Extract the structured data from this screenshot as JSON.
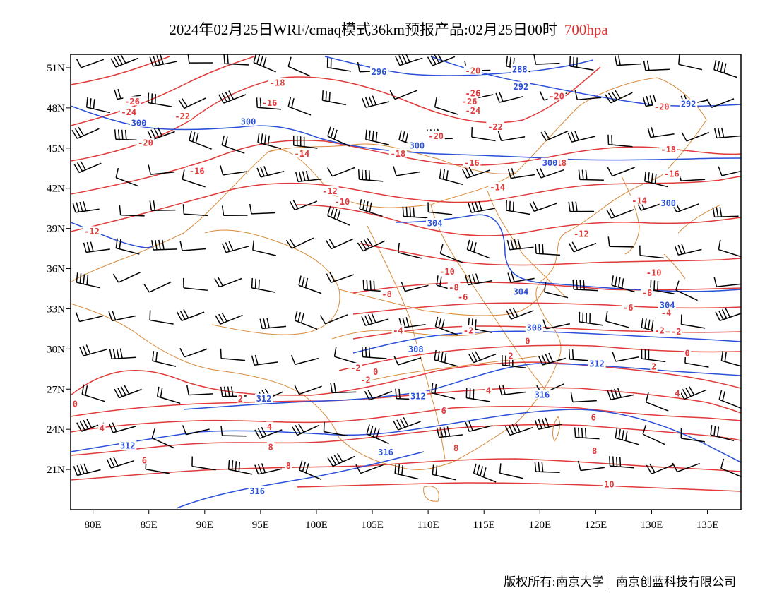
{
  "title": {
    "main": "2024年02月25日WRF/cmaq模式36km预报产品:02月25日00时",
    "level": "700hpa",
    "level_color": "#e03030"
  },
  "map": {
    "type": "weather-map",
    "lon_range": [
      78,
      138
    ],
    "lat_range": [
      18,
      52
    ],
    "lon_ticks": [
      "80E",
      "85E",
      "90E",
      "95E",
      "100E",
      "105E",
      "110E",
      "115E",
      "120E",
      "125E",
      "130E",
      "135E"
    ],
    "lat_ticks": [
      "21N",
      "24N",
      "27N",
      "30N",
      "33N",
      "36N",
      "39N",
      "42N",
      "45N",
      "48N",
      "51N"
    ],
    "temperature_color": "#e03a3a",
    "geopotential_color": "#2a4fd8",
    "boundary_color": "#d98a3a",
    "temperature_labels": [
      {
        "text": "-26",
        "lon": 83.5,
        "lat": 48.5
      },
      {
        "text": "-24",
        "lon": 83.2,
        "lat": 47.7
      },
      {
        "text": "-22",
        "lon": 88,
        "lat": 47.4
      },
      {
        "text": "-20",
        "lon": 84.7,
        "lat": 45.4
      },
      {
        "text": "-18",
        "lon": 96.5,
        "lat": 49.9
      },
      {
        "text": "-16",
        "lon": 95.8,
        "lat": 48.4
      },
      {
        "text": "-16",
        "lon": 89.3,
        "lat": 43.3
      },
      {
        "text": "-14",
        "lon": 98.7,
        "lat": 44.6
      },
      {
        "text": "-12",
        "lon": 79.9,
        "lat": 38.8
      },
      {
        "text": "-12",
        "lon": 101.2,
        "lat": 41.8
      },
      {
        "text": "-10",
        "lon": 102.3,
        "lat": 41
      },
      {
        "text": "-20",
        "lon": 114,
        "lat": 50.8
      },
      {
        "text": "-26",
        "lon": 114,
        "lat": 49.1
      },
      {
        "text": "-26",
        "lon": 113.7,
        "lat": 48.5
      },
      {
        "text": "-24",
        "lon": 114,
        "lat": 47.8
      },
      {
        "text": "-22",
        "lon": 116,
        "lat": 46.6
      },
      {
        "text": "-20",
        "lon": 121.5,
        "lat": 48.9
      },
      {
        "text": "-20",
        "lon": 110.7,
        "lat": 45.9
      },
      {
        "text": "-18",
        "lon": 107.3,
        "lat": 44.6
      },
      {
        "text": "-16",
        "lon": 113.9,
        "lat": 43.9
      },
      {
        "text": "-14",
        "lon": 116.2,
        "lat": 42.1
      },
      {
        "text": "-18",
        "lon": 121.7,
        "lat": 43.9
      },
      {
        "text": "-20",
        "lon": 130.9,
        "lat": 48.1
      },
      {
        "text": "-18",
        "lon": 131.5,
        "lat": 44.9
      },
      {
        "text": "-16",
        "lon": 131.8,
        "lat": 43.1
      },
      {
        "text": "-14",
        "lon": 128.9,
        "lat": 41.1
      },
      {
        "text": "-12",
        "lon": 123.7,
        "lat": 38.6
      },
      {
        "text": "-10",
        "lon": 111.7,
        "lat": 35.8
      },
      {
        "text": "-10",
        "lon": 130.2,
        "lat": 35.7
      },
      {
        "text": "-8",
        "lon": 106.3,
        "lat": 34.1
      },
      {
        "text": "-8",
        "lon": 112.3,
        "lat": 34.6
      },
      {
        "text": "-6",
        "lon": 113.1,
        "lat": 33.9
      },
      {
        "text": "-8",
        "lon": 129.6,
        "lat": 34.2
      },
      {
        "text": "-6",
        "lon": 127.9,
        "lat": 33.1
      },
      {
        "text": "-4",
        "lon": 131.3,
        "lat": 32.7
      },
      {
        "text": "-4",
        "lon": 107.3,
        "lat": 31.4
      },
      {
        "text": "-2",
        "lon": 113.6,
        "lat": 31.4
      },
      {
        "text": "-2",
        "lon": 130.7,
        "lat": 31.4
      },
      {
        "text": "-2",
        "lon": 132.2,
        "lat": 31.3
      },
      {
        "text": "-2",
        "lon": 103.5,
        "lat": 28.6
      },
      {
        "text": "0",
        "lon": 105.3,
        "lat": 28.3
      },
      {
        "text": "-2",
        "lon": 104.4,
        "lat": 27.7
      },
      {
        "text": "0",
        "lon": 118.9,
        "lat": 30.6
      },
      {
        "text": "2",
        "lon": 117.4,
        "lat": 29.5
      },
      {
        "text": "0",
        "lon": 133.2,
        "lat": 29.7
      },
      {
        "text": "2",
        "lon": 130.2,
        "lat": 28.7
      },
      {
        "text": "0",
        "lon": 78.4,
        "lat": 25.9
      },
      {
        "text": "2",
        "lon": 93.2,
        "lat": 26.3
      },
      {
        "text": "4",
        "lon": 115.4,
        "lat": 26.9
      },
      {
        "text": "4",
        "lon": 132.3,
        "lat": 26.7
      },
      {
        "text": "4",
        "lon": 80.8,
        "lat": 24.1
      },
      {
        "text": "4",
        "lon": 95.8,
        "lat": 24.2
      },
      {
        "text": "6",
        "lon": 111.4,
        "lat": 25.4
      },
      {
        "text": "6",
        "lon": 124.8,
        "lat": 24.9
      },
      {
        "text": "8",
        "lon": 95.9,
        "lat": 22.7
      },
      {
        "text": "8",
        "lon": 112.5,
        "lat": 22.6
      },
      {
        "text": "8",
        "lon": 124.9,
        "lat": 22.4
      },
      {
        "text": "6",
        "lon": 84.6,
        "lat": 21.7
      },
      {
        "text": "8",
        "lon": 97.5,
        "lat": 21.3
      },
      {
        "text": "10",
        "lon": 126.2,
        "lat": 19.9
      }
    ],
    "height_labels": [
      {
        "text": "296",
        "lon": 105.6,
        "lat": 50.7
      },
      {
        "text": "288",
        "lon": 118.2,
        "lat": 50.9
      },
      {
        "text": "292",
        "lon": 118.3,
        "lat": 49.6
      },
      {
        "text": "292",
        "lon": 133.3,
        "lat": 48.3
      },
      {
        "text": "300",
        "lon": 84.1,
        "lat": 46.9
      },
      {
        "text": "300",
        "lon": 93.9,
        "lat": 47
      },
      {
        "text": "300",
        "lon": 109,
        "lat": 45.2
      },
      {
        "text": "300",
        "lon": 120.9,
        "lat": 43.9
      },
      {
        "text": "300",
        "lon": 131.5,
        "lat": 40.9
      },
      {
        "text": "304",
        "lon": 110.6,
        "lat": 39.4
      },
      {
        "text": "304",
        "lon": 118.3,
        "lat": 34.3
      },
      {
        "text": "304",
        "lon": 131.4,
        "lat": 33.3
      },
      {
        "text": "308",
        "lon": 119.5,
        "lat": 31.6
      },
      {
        "text": "308",
        "lon": 108.9,
        "lat": 30
      },
      {
        "text": "312",
        "lon": 95.3,
        "lat": 26.3
      },
      {
        "text": "312",
        "lon": 109.1,
        "lat": 26.5
      },
      {
        "text": "312",
        "lon": 125.1,
        "lat": 28.9
      },
      {
        "text": "312",
        "lon": 83.1,
        "lat": 22.8
      },
      {
        "text": "316",
        "lon": 120.2,
        "lat": 26.6
      },
      {
        "text": "316",
        "lon": 106.2,
        "lat": 22.3
      },
      {
        "text": "316",
        "lon": 94.7,
        "lat": 19.4
      }
    ]
  },
  "footer": {
    "left": "版权所有:南京大学",
    "right": "南京创蓝科技有限公司"
  }
}
